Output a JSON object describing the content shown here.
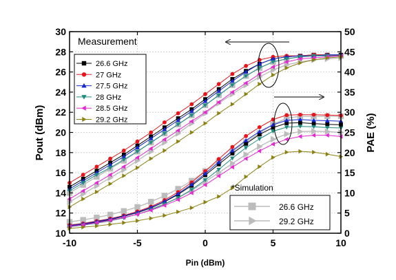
{
  "chart_data": {
    "type": "line",
    "xlabel": "Pin (dBm)",
    "ylabel": "Pout (dBm)",
    "y2label": "PAE (%)",
    "xlim": [
      -10,
      10
    ],
    "ylim": [
      10,
      30
    ],
    "y2lim": [
      0,
      50
    ],
    "xticks": [
      "-10",
      "-5",
      "0",
      "5",
      "10"
    ],
    "yticks": [
      "10",
      "12",
      "14",
      "16",
      "18",
      "20",
      "22",
      "24",
      "26",
      "28",
      "30"
    ],
    "y2ticks": [
      "0",
      "5",
      "10",
      "15",
      "20",
      "25",
      "30",
      "35",
      "40",
      "45",
      "50"
    ],
    "grid": true,
    "legend_title": "Measurement",
    "legend_placement": "top-left",
    "sim_label": "*Simulation",
    "x": [
      -10,
      -9,
      -8,
      -7,
      -6,
      -5,
      -4,
      -3,
      -2,
      -1,
      0,
      1,
      2,
      3,
      4,
      5,
      6,
      7,
      8,
      9,
      10
    ],
    "series": [
      {
        "name": "26.6 GHz",
        "color": "#000000",
        "marker": "square",
        "axis": "pout",
        "values": [
          14.6,
          15.4,
          16.2,
          17.0,
          17.8,
          18.7,
          19.6,
          20.5,
          21.4,
          22.3,
          23.3,
          24.3,
          25.3,
          26.1,
          26.8,
          27.3,
          27.5,
          27.6,
          27.7,
          27.7,
          27.7
        ]
      },
      {
        "name": "27 GHz",
        "color": "#e8141c",
        "marker": "circle",
        "axis": "pout",
        "values": [
          15.0,
          15.8,
          16.6,
          17.4,
          18.2,
          19.1,
          20.0,
          21.0,
          21.9,
          22.8,
          23.8,
          24.8,
          25.8,
          26.6,
          27.2,
          27.5,
          27.6,
          27.6,
          27.7,
          27.7,
          27.6
        ]
      },
      {
        "name": "27.5 GHz",
        "color": "#1428d2",
        "marker": "triangle-up",
        "axis": "pout",
        "values": [
          14.4,
          15.2,
          16.0,
          16.8,
          17.6,
          18.5,
          19.4,
          20.3,
          21.2,
          22.1,
          23.1,
          24.1,
          25.1,
          26.0,
          26.8,
          27.3,
          27.5,
          27.6,
          27.6,
          27.7,
          27.7
        ]
      },
      {
        "name": "28 GHz",
        "color": "#1e8c82",
        "marker": "triangle-down",
        "axis": "pout",
        "values": [
          14.2,
          15.0,
          15.8,
          16.5,
          17.3,
          18.1,
          19.0,
          19.9,
          20.8,
          21.7,
          22.7,
          23.7,
          24.7,
          25.6,
          26.4,
          27.0,
          27.3,
          27.5,
          27.6,
          27.6,
          27.6
        ]
      },
      {
        "name": "28.5 GHz",
        "color": "#e628d2",
        "marker": "triangle-left",
        "axis": "pout",
        "values": [
          13.4,
          14.2,
          15.0,
          15.8,
          16.6,
          17.5,
          18.4,
          19.3,
          20.2,
          21.1,
          22.0,
          23.0,
          24.0,
          24.9,
          25.8,
          26.5,
          27.0,
          27.3,
          27.4,
          27.5,
          27.6
        ]
      },
      {
        "name": "29.2 GHz",
        "color": "#8c8214",
        "marker": "triangle-right",
        "axis": "pout",
        "values": [
          12.6,
          13.4,
          14.1,
          14.9,
          15.7,
          16.5,
          17.4,
          18.2,
          19.1,
          20.0,
          20.9,
          21.9,
          22.8,
          23.8,
          24.8,
          25.7,
          26.4,
          26.9,
          27.2,
          27.4,
          27.5
        ]
      },
      {
        "name": "26.6 GHz",
        "color": "#000000",
        "marker": "square",
        "axis": "pae",
        "values": [
          1.8,
          2.2,
          2.8,
          3.4,
          4.2,
          5.1,
          6.3,
          7.8,
          9.6,
          11.8,
          14.4,
          17.1,
          19.8,
          22.2,
          24.5,
          26.2,
          27.3,
          27.4,
          27.2,
          27.0,
          26.9
        ]
      },
      {
        "name": "27 GHz",
        "color": "#e8141c",
        "marker": "circle",
        "axis": "pae",
        "values": [
          2.0,
          2.4,
          3.0,
          3.6,
          4.4,
          5.4,
          6.6,
          8.2,
          10.2,
          12.6,
          15.4,
          18.4,
          21.4,
          24.1,
          26.3,
          28.2,
          29.3,
          29.4,
          29.4,
          29.3,
          29.2
        ]
      },
      {
        "name": "27.5 GHz",
        "color": "#1428d2",
        "marker": "triangle-up",
        "axis": "pae",
        "values": [
          1.9,
          2.3,
          2.9,
          3.5,
          4.3,
          5.2,
          6.4,
          7.9,
          9.8,
          12.1,
          14.8,
          17.6,
          20.5,
          23.0,
          25.2,
          26.9,
          28.0,
          28.2,
          28.0,
          27.9,
          27.8
        ]
      },
      {
        "name": "28 GHz",
        "color": "#1e8c82",
        "marker": "triangle-down",
        "axis": "pae",
        "values": [
          1.6,
          2.0,
          2.5,
          3.1,
          3.8,
          4.7,
          5.8,
          7.2,
          8.8,
          10.8,
          13.2,
          15.8,
          18.6,
          21.2,
          23.4,
          25.3,
          26.3,
          26.5,
          26.4,
          26.2,
          26.1
        ]
      },
      {
        "name": "28.5 GHz",
        "color": "#e628d2",
        "marker": "triangle-left",
        "axis": "pae",
        "values": [
          1.7,
          2.1,
          2.6,
          3.2,
          3.9,
          4.7,
          5.7,
          6.9,
          8.3,
          10.0,
          12.0,
          14.2,
          16.4,
          18.5,
          20.4,
          22.1,
          23.3,
          24.0,
          24.3,
          24.3,
          24.0
        ]
      },
      {
        "name": "29.2 GHz",
        "color": "#8c8214",
        "marker": "triangle-right",
        "axis": "pae",
        "values": [
          1.2,
          1.5,
          1.8,
          2.2,
          2.6,
          3.1,
          3.7,
          4.4,
          5.3,
          6.3,
          7.7,
          9.1,
          11.2,
          14.0,
          16.5,
          18.8,
          20.1,
          20.3,
          20.1,
          19.6,
          19.0
        ]
      }
    ],
    "simulation": [
      {
        "name": "26.6 GHz",
        "color": "#bcbcbc",
        "marker": "square",
        "pout": [
          14.0,
          14.8,
          15.6,
          16.4,
          17.2,
          18.1,
          19.0,
          19.9,
          20.8,
          21.7,
          22.7,
          23.7,
          24.7,
          25.6,
          26.4,
          27.0,
          27.3,
          27.5,
          27.6,
          27.6,
          27.6
        ],
        "pae": [
          2.8,
          3.3,
          3.9,
          4.6,
          5.5,
          6.5,
          7.8,
          9.3,
          11.0,
          13.0,
          15.4,
          17.8,
          20.3,
          22.6,
          24.8,
          27.0,
          28.5,
          29.0,
          29.0,
          29.0,
          29.0
        ]
      },
      {
        "name": "29.2 GHz",
        "color": "#bcbcbc",
        "marker": "triangle-right",
        "pout": [
          13.1,
          13.9,
          14.7,
          15.5,
          16.3,
          17.2,
          18.1,
          19.0,
          19.9,
          20.9,
          21.9,
          22.9,
          23.8,
          24.7,
          25.5,
          26.2,
          26.7,
          27.0,
          27.2,
          27.3,
          27.4
        ],
        "pae": [
          2.1,
          2.5,
          3.0,
          3.6,
          4.3,
          5.1,
          6.1,
          7.3,
          8.8,
          10.6,
          12.8,
          15.0,
          17.3,
          19.5,
          21.5,
          23.3,
          24.6,
          25.2,
          25.3,
          25.2,
          25.0
        ]
      }
    ]
  }
}
